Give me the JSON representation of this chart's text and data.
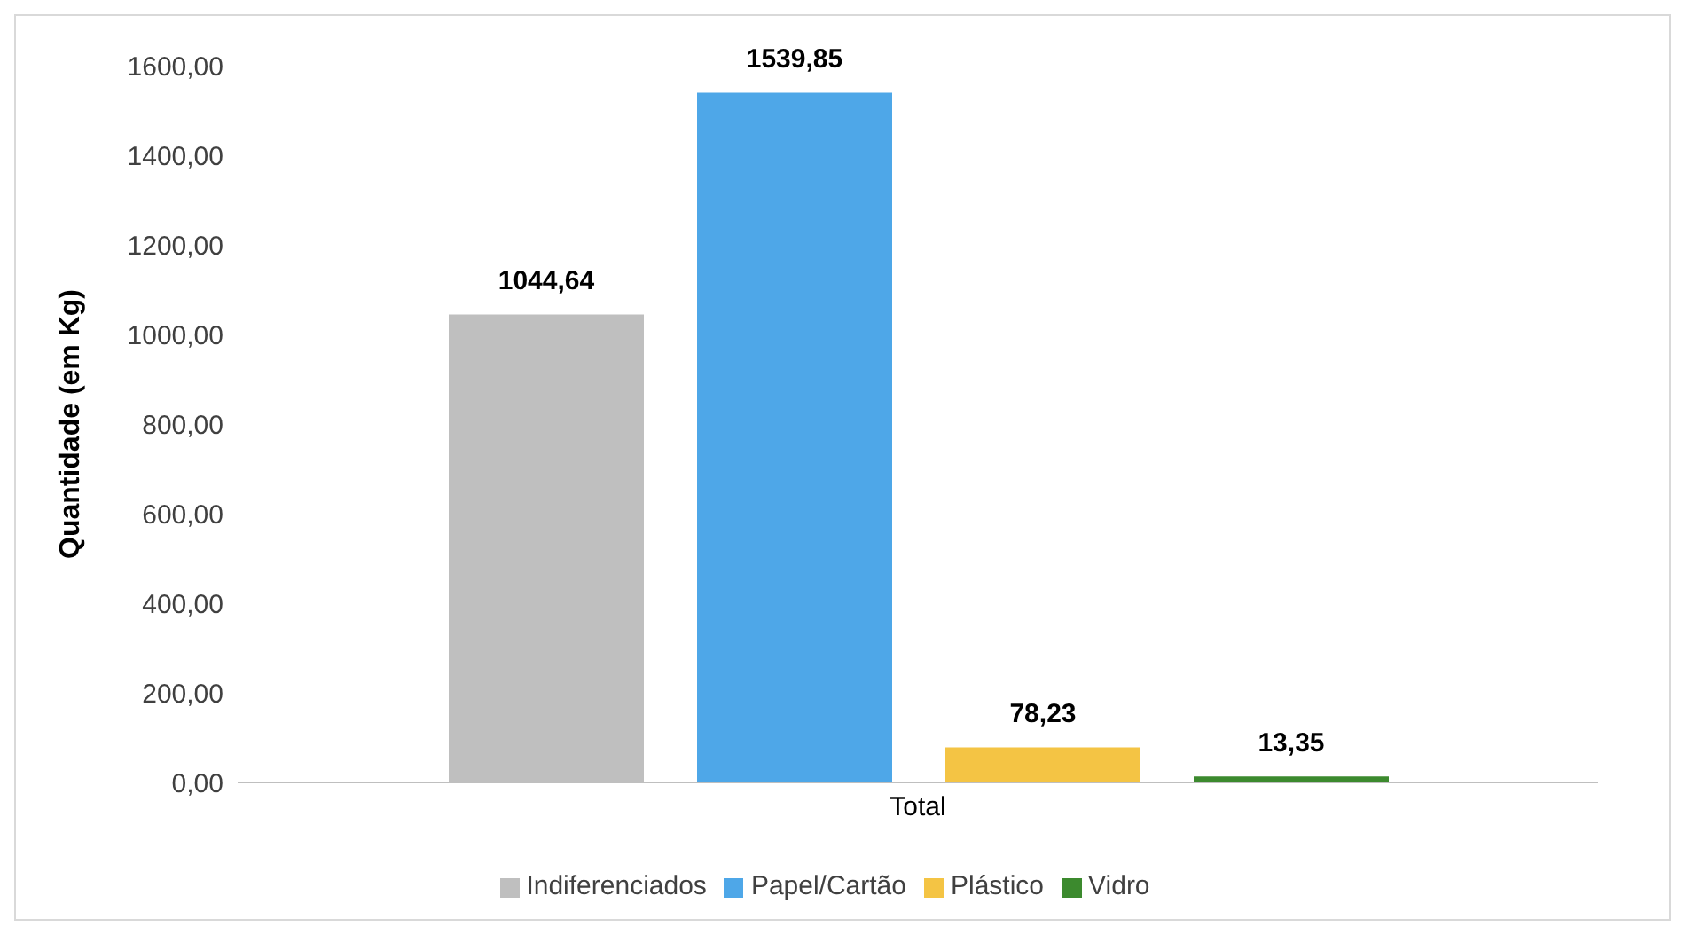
{
  "chart_data": {
    "type": "bar",
    "ylabel": "Quantidade (em Kg)",
    "categories": [
      "Total"
    ],
    "series": [
      {
        "name": "Indiferenciados",
        "color": "#bfbfbf",
        "values": [
          1044.64
        ],
        "value_labels": [
          "1044,64"
        ]
      },
      {
        "name": "Papel/Cartão",
        "color": "#4ea7e8",
        "values": [
          1539.85
        ],
        "value_labels": [
          "1539,85"
        ]
      },
      {
        "name": "Plástico",
        "color": "#f4c444",
        "values": [
          78.23
        ],
        "value_labels": [
          "78,23"
        ]
      },
      {
        "name": "Vidro",
        "color": "#3c8a2e",
        "values": [
          13.35
        ],
        "value_labels": [
          "13,35"
        ]
      }
    ],
    "ylim": [
      0,
      1600
    ],
    "yticks": [
      {
        "value": 0,
        "label": "0,00"
      },
      {
        "value": 200,
        "label": "200,00"
      },
      {
        "value": 400,
        "label": "400,00"
      },
      {
        "value": 600,
        "label": "600,00"
      },
      {
        "value": 800,
        "label": "800,00"
      },
      {
        "value": 1000,
        "label": "1000,00"
      },
      {
        "value": 1200,
        "label": "1200,00"
      },
      {
        "value": 1400,
        "label": "1400,00"
      },
      {
        "value": 1600,
        "label": "1600,00"
      }
    ],
    "grid": false,
    "legend": "bottom"
  }
}
